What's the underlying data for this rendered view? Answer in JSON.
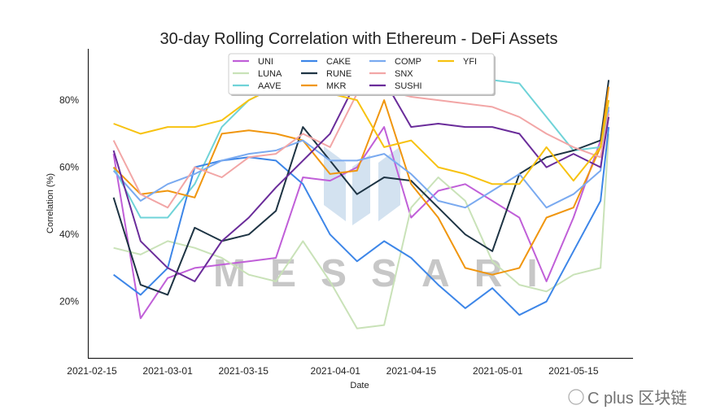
{
  "chart_data": {
    "type": "line",
    "title": "30-day Rolling Correlation with Ethereum - DeFi Assets",
    "xlabel": "Date",
    "ylabel": "Correlation (%)",
    "x_origin_date": "2021-02-15",
    "x_unit": "days since 2021-02-15",
    "x": [
      4,
      9,
      14,
      19,
      24,
      29,
      34,
      39,
      44,
      49,
      54,
      59,
      64,
      69,
      74,
      79,
      84,
      89,
      94,
      95.5
    ],
    "xlim": [
      -0.75,
      100
    ],
    "ylim": [
      3.2,
      95.3
    ],
    "x_ticks": [
      {
        "day": 0,
        "label": "2021-02-15"
      },
      {
        "day": 14,
        "label": "2021-03-01"
      },
      {
        "day": 28,
        "label": "2021-03-15"
      },
      {
        "day": 45,
        "label": "2021-04-01"
      },
      {
        "day": 59,
        "label": "2021-04-15"
      },
      {
        "day": 75,
        "label": "2021-05-01"
      },
      {
        "day": 89,
        "label": "2021-05-15"
      }
    ],
    "y_ticks": [
      {
        "value": 20,
        "label": "20%"
      },
      {
        "value": 40,
        "label": "40%"
      },
      {
        "value": 60,
        "label": "60%"
      },
      {
        "value": 80,
        "label": "80%"
      }
    ],
    "grid": false,
    "legend_position": "top-center",
    "series": [
      {
        "name": "UNI",
        "color": "#c05fd8",
        "values": [
          64,
          15,
          27,
          30,
          31,
          32,
          33,
          57,
          56,
          60,
          72,
          45,
          53,
          55,
          50,
          45,
          26,
          45,
          68,
          77
        ]
      },
      {
        "name": "LUNA",
        "color": "#c9e2b8",
        "values": [
          36,
          34,
          38,
          36,
          33,
          28,
          26,
          38,
          26,
          12,
          13,
          48,
          57,
          50,
          32,
          25,
          23,
          28,
          30,
          70
        ]
      },
      {
        "name": "AAVE",
        "color": "#6fd3d8",
        "values": [
          60,
          45,
          45,
          55,
          72,
          80,
          84,
          88,
          90,
          91,
          88,
          90,
          88,
          87,
          86,
          85,
          75,
          65,
          66,
          76
        ]
      },
      {
        "name": "CAKE",
        "color": "#3d86e8",
        "values": [
          28,
          22,
          30,
          60,
          62,
          63,
          62,
          55,
          40,
          32,
          38,
          33,
          25,
          18,
          24,
          16,
          20,
          35,
          50,
          72
        ]
      },
      {
        "name": "RUNE",
        "color": "#1e3444",
        "values": [
          51,
          25,
          22,
          42,
          38,
          40,
          47,
          72,
          62,
          52,
          57,
          56,
          48,
          40,
          35,
          58,
          63,
          65,
          68,
          86
        ]
      },
      {
        "name": "MKR",
        "color": "#f0960f",
        "values": [
          60,
          52,
          53,
          51,
          70,
          71,
          70,
          68,
          58,
          59,
          80,
          55,
          45,
          30,
          28,
          30,
          45,
          48,
          66,
          84
        ]
      },
      {
        "name": "COMP",
        "color": "#7aaaf0",
        "values": [
          59,
          50,
          55,
          58,
          62,
          64,
          65,
          68,
          62,
          62,
          64,
          58,
          50,
          48,
          53,
          58,
          48,
          52,
          59,
          78
        ]
      },
      {
        "name": "SNX",
        "color": "#f2a6a6",
        "values": [
          68,
          52,
          48,
          60,
          57,
          63,
          64,
          70,
          66,
          82,
          83,
          81,
          80,
          79,
          78,
          75,
          70,
          66,
          63,
          76
        ]
      },
      {
        "name": "SUSHI",
        "color": "#6a2c9a",
        "values": [
          65,
          38,
          30,
          26,
          38,
          45,
          54,
          62,
          70,
          86,
          86,
          72,
          73,
          72,
          72,
          70,
          60,
          64,
          60,
          75
        ]
      },
      {
        "name": "YFI",
        "color": "#f7c210",
        "values": [
          73,
          70,
          72,
          72,
          74,
          80,
          84,
          86,
          82,
          80,
          66,
          68,
          60,
          58,
          55,
          55,
          66,
          56,
          66,
          80
        ]
      }
    ]
  },
  "watermarks": {
    "messari": "MESSARI",
    "wechat": "C plus 区块链"
  }
}
